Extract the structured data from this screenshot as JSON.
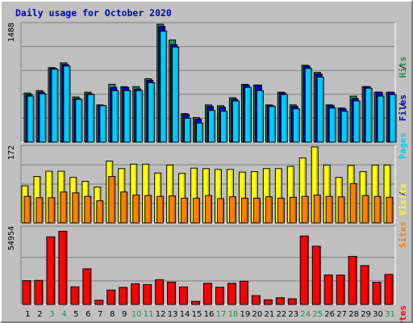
{
  "title": "Daily usage for October 2020",
  "colors": {
    "background": "#c0c0c0",
    "panel": "#bfbfbf",
    "grid": "#808080",
    "hits": "#2e8b57",
    "files": "#0000cc",
    "pages": "#00ccff",
    "visits": "#ffff00",
    "sites": "#ff8000",
    "kbytes": "#ff0000",
    "weekend_tick": "#2e8b57",
    "weekday_tick": "#000000"
  },
  "chart_data": [
    {
      "type": "bar",
      "panel": "hits-files-pages",
      "y_max_label": "1488",
      "ylim": [
        0,
        1488
      ],
      "categories": [
        "1",
        "2",
        "3",
        "4",
        "5",
        "6",
        "7",
        "8",
        "9",
        "10",
        "11",
        "12",
        "13",
        "14",
        "15",
        "16",
        "17",
        "18",
        "19",
        "20",
        "21",
        "22",
        "23",
        "24",
        "25",
        "26",
        "27",
        "28",
        "29",
        "30",
        "31"
      ],
      "legend": [
        {
          "text": "Hits",
          "color": "#2e8b57"
        },
        {
          "text": "Files",
          "color": "#0000cc"
        },
        {
          "text": "Pages",
          "color": "#00ccff"
        }
      ],
      "series": [
        {
          "name": "Hits",
          "values": [
            620,
            650,
            940,
            1000,
            570,
            630,
            470,
            730,
            700,
            700,
            800,
            1488,
            1290,
            360,
            310,
            470,
            460,
            560,
            730,
            720,
            470,
            630,
            470,
            970,
            880,
            470,
            430,
            580,
            700,
            630,
            630
          ]
        },
        {
          "name": "Files",
          "values": [
            600,
            630,
            930,
            980,
            550,
            610,
            460,
            690,
            690,
            670,
            780,
            1460,
            1230,
            350,
            290,
            450,
            440,
            540,
            720,
            720,
            460,
            620,
            450,
            960,
            860,
            460,
            420,
            550,
            700,
            630,
            630
          ]
        },
        {
          "name": "Pages",
          "values": [
            580,
            610,
            920,
            960,
            540,
            600,
            460,
            650,
            650,
            650,
            750,
            1400,
            1200,
            300,
            240,
            400,
            390,
            520,
            690,
            650,
            450,
            600,
            420,
            930,
            820,
            430,
            390,
            520,
            680,
            580,
            600
          ]
        }
      ]
    },
    {
      "type": "bar",
      "panel": "visits-sites",
      "y_max_label": "172",
      "ylim": [
        0,
        172
      ],
      "categories": [
        "1",
        "2",
        "3",
        "4",
        "5",
        "6",
        "7",
        "8",
        "9",
        "10",
        "11",
        "12",
        "13",
        "14",
        "15",
        "16",
        "17",
        "18",
        "19",
        "20",
        "21",
        "22",
        "23",
        "24",
        "25",
        "26",
        "27",
        "28",
        "29",
        "30",
        "31"
      ],
      "legend": [
        {
          "text": "Visits",
          "color": "#ffff00"
        },
        {
          "text": "Sites",
          "color": "#ff8000"
        }
      ],
      "series": [
        {
          "name": "Visits",
          "values": [
            84,
            105,
            117,
            117,
            103,
            94,
            81,
            140,
            123,
            133,
            133,
            113,
            131,
            112,
            124,
            123,
            121,
            121,
            115,
            116,
            123,
            123,
            128,
            147,
            172,
            131,
            103,
            130,
            116,
            131,
            131
          ]
        },
        {
          "name": "Sites",
          "values": [
            60,
            57,
            57,
            70,
            68,
            60,
            50,
            105,
            70,
            63,
            62,
            60,
            61,
            56,
            56,
            62,
            55,
            59,
            56,
            56,
            59,
            56,
            58,
            60,
            63,
            60,
            59,
            89,
            62,
            60,
            58
          ]
        }
      ]
    },
    {
      "type": "bar",
      "panel": "kbytes",
      "y_max_label": "54954",
      "ylim": [
        0,
        54954
      ],
      "categories": [
        "1",
        "2",
        "3",
        "4",
        "5",
        "6",
        "7",
        "8",
        "9",
        "10",
        "11",
        "12",
        "13",
        "14",
        "15",
        "16",
        "17",
        "18",
        "19",
        "20",
        "21",
        "22",
        "23",
        "24",
        "25",
        "26",
        "27",
        "28",
        "29",
        "30",
        "31"
      ],
      "legend": [
        {
          "text": "KBytes",
          "color": "#ff0000"
        }
      ],
      "series": [
        {
          "name": "KBytes",
          "values": [
            17000,
            17200,
            48400,
            52400,
            12600,
            25500,
            3000,
            10300,
            12200,
            14800,
            14200,
            17700,
            16000,
            12500,
            2200,
            15100,
            12300,
            15100,
            16600,
            6300,
            3300,
            4800,
            4000,
            49000,
            41700,
            21100,
            21000,
            34400,
            27800,
            15900,
            21500
          ]
        }
      ]
    }
  ],
  "x_ticks": [
    {
      "label": "1",
      "weekend": false
    },
    {
      "label": "2",
      "weekend": false
    },
    {
      "label": "3",
      "weekend": true
    },
    {
      "label": "4",
      "weekend": true
    },
    {
      "label": "5",
      "weekend": false
    },
    {
      "label": "6",
      "weekend": false
    },
    {
      "label": "7",
      "weekend": false
    },
    {
      "label": "8",
      "weekend": false
    },
    {
      "label": "9",
      "weekend": false
    },
    {
      "label": "10",
      "weekend": true
    },
    {
      "label": "11",
      "weekend": true
    },
    {
      "label": "12",
      "weekend": false
    },
    {
      "label": "13",
      "weekend": false
    },
    {
      "label": "14",
      "weekend": false
    },
    {
      "label": "15",
      "weekend": false
    },
    {
      "label": "16",
      "weekend": false
    },
    {
      "label": "17",
      "weekend": true
    },
    {
      "label": "18",
      "weekend": true
    },
    {
      "label": "19",
      "weekend": false
    },
    {
      "label": "20",
      "weekend": false
    },
    {
      "label": "21",
      "weekend": false
    },
    {
      "label": "22",
      "weekend": false
    },
    {
      "label": "23",
      "weekend": false
    },
    {
      "label": "24",
      "weekend": true
    },
    {
      "label": "25",
      "weekend": true
    },
    {
      "label": "26",
      "weekend": false
    },
    {
      "label": "27",
      "weekend": false
    },
    {
      "label": "28",
      "weekend": false
    },
    {
      "label": "29",
      "weekend": false
    },
    {
      "label": "30",
      "weekend": false
    },
    {
      "label": "31",
      "weekend": true
    }
  ]
}
